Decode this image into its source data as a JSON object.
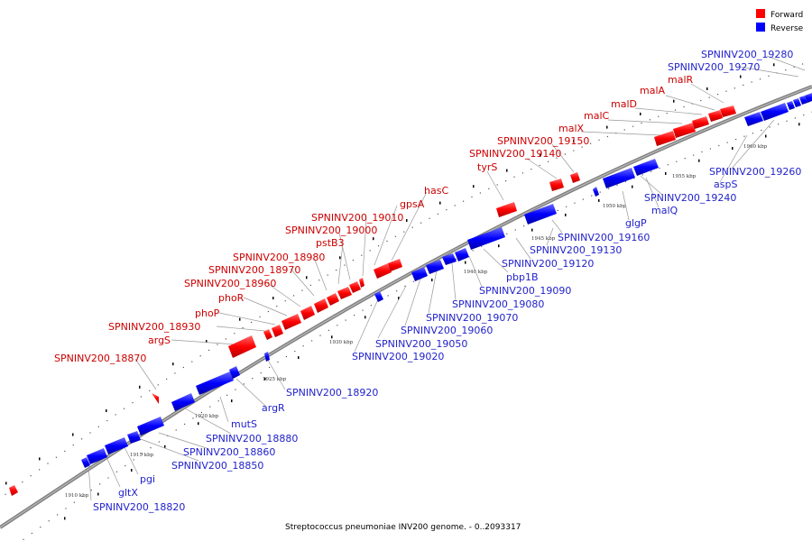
{
  "title": "Streptococcus pneumoniae INV200 genome. - 0..2093317",
  "legend": [
    {
      "label": "Forward",
      "color": "#ff0000"
    },
    {
      "label": "Reverse",
      "color": "#0000ff"
    }
  ],
  "kbp_ticks": [
    "1910 kbp",
    "1915 kbp",
    "1920 kbp",
    "1925 kbp",
    "1930 kbp",
    "1940 kbp",
    "1945 kbp",
    "1950 kbp",
    "1955 kbp",
    "1960 kbp"
  ],
  "forward_labels": [
    "SPNINV200_18870",
    "argS",
    "SPNINV200_18930",
    "phoP",
    "phoR",
    "SPNINV200_18960",
    "SPNINV200_18970",
    "SPNINV200_18980",
    "pstB3",
    "SPNINV200_19000",
    "SPNINV200_19010",
    "gpsA",
    "hasC",
    "tyrS",
    "SPNINV200_19140",
    "SPNINV200_19150",
    "malX",
    "malC",
    "malD",
    "malA",
    "malR"
  ],
  "reverse_labels": [
    "SPNINV200_18820",
    "gltX",
    "pgi",
    "SPNINV200_18850",
    "SPNINV200_18860",
    "SPNINV200_18880",
    "mutS",
    "argR",
    "SPNINV200_18920",
    "SPNINV200_19020",
    "SPNINV200_19050",
    "SPNINV200_19060",
    "SPNINV200_19070",
    "SPNINV200_19080",
    "SPNINV200_19090",
    "pbp1B",
    "SPNINV200_19120",
    "SPNINV200_19130",
    "SPNINV200_19160",
    "glgP",
    "malQ",
    "SPNINV200_19240",
    "aspS",
    "SPNINV200_19260",
    "SPNINV200_19270",
    "SPNINV200_19280"
  ]
}
